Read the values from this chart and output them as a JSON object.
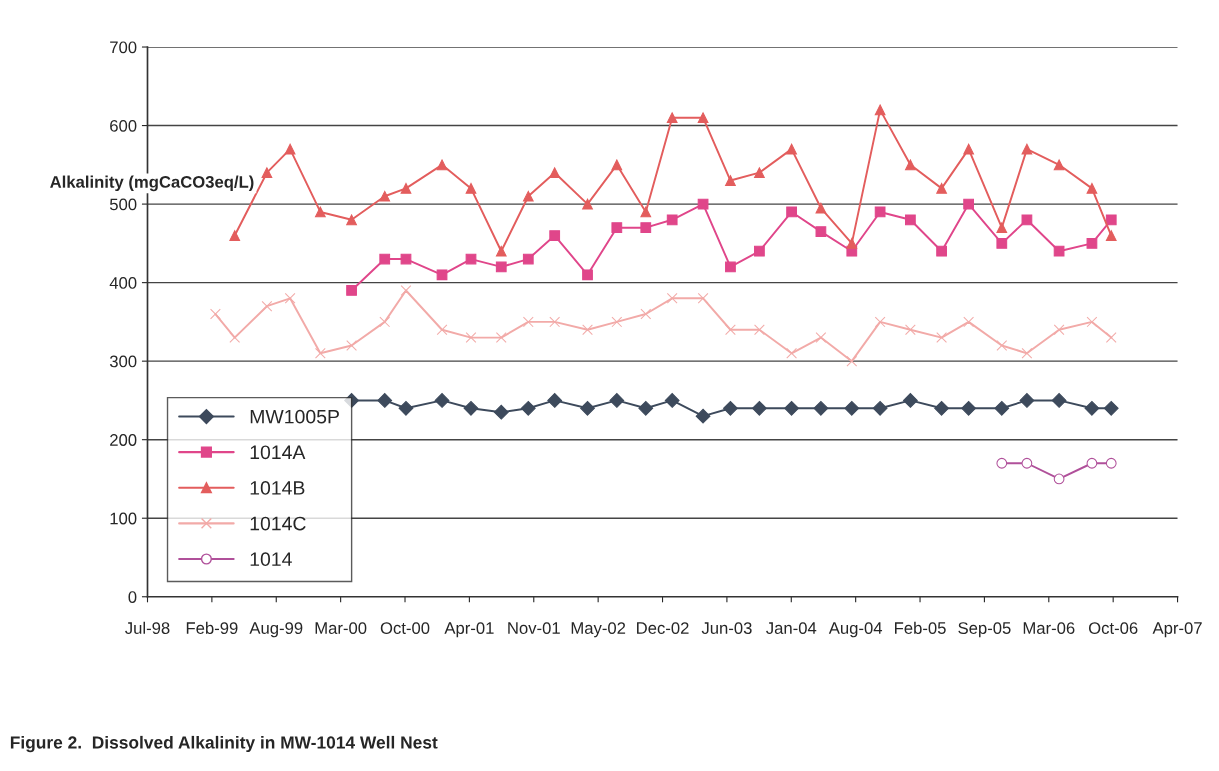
{
  "chart_data": {
    "type": "line",
    "title": "Figure 2.  Dissolved Alkalinity in MW-1014 Well Nest",
    "ylabel": "Alkalinity (mgCaCO3eq/L)",
    "xlim": [
      "1998-07-25",
      "2007-04-29"
    ],
    "xticks": [
      {
        "value": "1998-07-25",
        "label": "Jul-98"
      },
      {
        "value": "1999-02-10",
        "label": "Feb-99"
      },
      {
        "value": "1999-08-29",
        "label": "Aug-99"
      },
      {
        "value": "2000-03-16",
        "label": "Mar-00"
      },
      {
        "value": "2000-10-02",
        "label": "Oct-00"
      },
      {
        "value": "2001-04-20",
        "label": "Apr-01"
      },
      {
        "value": "2001-11-06",
        "label": "Nov-01"
      },
      {
        "value": "2002-05-25",
        "label": "May-02"
      },
      {
        "value": "2002-12-11",
        "label": "Dec-02"
      },
      {
        "value": "2003-06-29",
        "label": "Jun-03"
      },
      {
        "value": "2004-01-15",
        "label": "Jan-04"
      },
      {
        "value": "2004-08-02",
        "label": "Aug-04"
      },
      {
        "value": "2005-02-18",
        "label": "Feb-05"
      },
      {
        "value": "2005-09-06",
        "label": "Sep-05"
      },
      {
        "value": "2006-03-25",
        "label": "Mar-06"
      },
      {
        "value": "2006-10-11",
        "label": "Oct-06"
      },
      {
        "value": "2007-04-29",
        "label": "Apr-07"
      }
    ],
    "ylim": [
      0,
      700
    ],
    "yticks": [
      0,
      100,
      200,
      300,
      400,
      500,
      600,
      700
    ],
    "grid": "y",
    "legend": "bottom left",
    "series": [
      {
        "name": "MW1005P",
        "color": "#3d4a5c",
        "marker": "diamond",
        "x": [
          "2000-04-19",
          "2000-07-31",
          "2000-10-05",
          "2001-01-25",
          "2001-04-25",
          "2001-07-28",
          "2001-10-20",
          "2002-01-10",
          "2002-04-22",
          "2002-07-22",
          "2002-10-20",
          "2003-01-10",
          "2003-04-16",
          "2003-07-10",
          "2003-10-08",
          "2004-01-16",
          "2004-04-16",
          "2004-07-21",
          "2004-10-17",
          "2005-01-19",
          "2005-04-26",
          "2005-07-19",
          "2005-10-30",
          "2006-01-16",
          "2006-04-26",
          "2006-08-06",
          "2006-10-05"
        ],
        "values": [
          250,
          250,
          240,
          250,
          240,
          235,
          240,
          250,
          240,
          250,
          240,
          250,
          230,
          240,
          240,
          240,
          240,
          240,
          240,
          250,
          240,
          240,
          240,
          250,
          250,
          240,
          240
        ]
      },
      {
        "name": "1014A",
        "color": "#e0468a",
        "marker": "square",
        "x": [
          "2000-04-19",
          "2000-07-31",
          "2000-10-05",
          "2001-01-25",
          "2001-04-25",
          "2001-07-28",
          "2001-10-20",
          "2002-01-10",
          "2002-04-22",
          "2002-07-22",
          "2002-10-20",
          "2003-01-10",
          "2003-04-16",
          "2003-07-10",
          "2003-10-08",
          "2004-01-16",
          "2004-04-16",
          "2004-07-21",
          "2004-10-17",
          "2005-01-19",
          "2005-04-26",
          "2005-07-19",
          "2005-10-30",
          "2006-01-16",
          "2006-04-26",
          "2006-08-06",
          "2006-10-05"
        ],
        "values": [
          390,
          430,
          430,
          410,
          430,
          420,
          430,
          460,
          410,
          470,
          470,
          480,
          500,
          420,
          440,
          490,
          465,
          440,
          490,
          480,
          440,
          500,
          450,
          480,
          440,
          450,
          480
        ]
      },
      {
        "name": "1014B",
        "color": "#e35d5d",
        "marker": "triangle",
        "x": [
          "1999-04-22",
          "1999-07-31",
          "1999-10-11",
          "2000-01-13",
          "2000-04-19",
          "2000-07-31",
          "2000-10-05",
          "2001-01-25",
          "2001-04-25",
          "2001-07-28",
          "2001-10-20",
          "2002-01-10",
          "2002-04-22",
          "2002-07-22",
          "2002-10-20",
          "2003-01-10",
          "2003-04-16",
          "2003-07-10",
          "2003-10-08",
          "2004-01-16",
          "2004-04-16",
          "2004-07-21",
          "2004-10-17",
          "2005-01-19",
          "2005-04-26",
          "2005-07-19",
          "2005-10-30",
          "2006-01-16",
          "2006-04-26",
          "2006-08-06",
          "2006-10-05"
        ],
        "values": [
          460,
          540,
          570,
          490,
          480,
          510,
          520,
          550,
          520,
          440,
          510,
          540,
          500,
          550,
          490,
          610,
          610,
          530,
          540,
          570,
          495,
          450,
          620,
          550,
          520,
          570,
          470,
          570,
          550,
          520,
          460
        ]
      },
      {
        "name": "1014C",
        "color": "#f2aaa8",
        "marker": "cross",
        "x": [
          "1999-02-21",
          "1999-04-22",
          "1999-07-31",
          "1999-10-11",
          "2000-01-13",
          "2000-04-19",
          "2000-07-31",
          "2000-10-05",
          "2001-01-25",
          "2001-04-25",
          "2001-07-28",
          "2001-10-20",
          "2002-01-10",
          "2002-04-22",
          "2002-07-22",
          "2002-10-20",
          "2003-01-10",
          "2003-04-16",
          "2003-07-10",
          "2003-10-08",
          "2004-01-16",
          "2004-04-16",
          "2004-07-21",
          "2004-10-17",
          "2005-01-19",
          "2005-04-26",
          "2005-07-19",
          "2005-10-30",
          "2006-01-16",
          "2006-04-26",
          "2006-08-06",
          "2006-10-05"
        ],
        "values": [
          360,
          330,
          370,
          380,
          310,
          320,
          350,
          390,
          340,
          330,
          330,
          350,
          350,
          340,
          350,
          360,
          380,
          380,
          340,
          340,
          310,
          330,
          300,
          350,
          340,
          330,
          350,
          320,
          310,
          340,
          350,
          330
        ]
      },
      {
        "name": "1014",
        "color": "#b0509a",
        "marker": "circle",
        "x": [
          "2005-10-30",
          "2006-01-16",
          "2006-04-26",
          "2006-08-06",
          "2006-10-05"
        ],
        "values": [
          170,
          170,
          150,
          170,
          170
        ]
      }
    ]
  }
}
